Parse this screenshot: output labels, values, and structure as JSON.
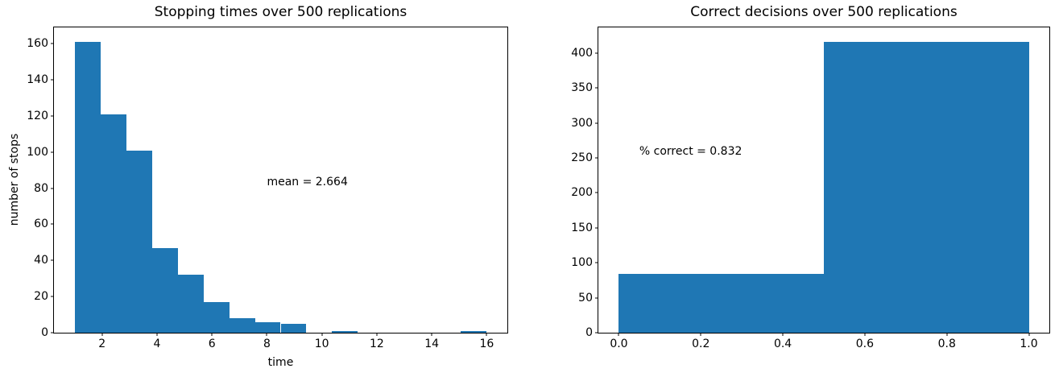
{
  "figure": {
    "background": "#ffffff",
    "text_color": "#000000",
    "axis_color": "#000000"
  },
  "chart_data": [
    {
      "type": "bar",
      "title": "Stopping times over 500 replications",
      "xlabel": "time",
      "ylabel": "number of stops",
      "bar_color": "#1f77b4",
      "bin_edges": [
        1,
        1.9375,
        2.875,
        3.8125,
        4.75,
        5.6875,
        6.625,
        7.5625,
        8.5,
        9.4375,
        10.375,
        11.3125,
        12.25,
        13.1875,
        14.125,
        15.0625,
        16
      ],
      "counts": [
        161,
        121,
        101,
        47,
        32,
        17,
        8,
        6,
        5,
        0,
        1,
        0,
        0,
        0,
        0,
        1
      ],
      "xlim": [
        0.25,
        16.75
      ],
      "ylim": [
        0,
        169.05
      ],
      "xticks": [
        2,
        4,
        6,
        8,
        10,
        12,
        14,
        16
      ],
      "xtick_labels": [
        "2",
        "4",
        "6",
        "8",
        "10",
        "12",
        "14",
        "16"
      ],
      "yticks": [
        0,
        20,
        40,
        60,
        80,
        100,
        120,
        140,
        160
      ],
      "ytick_labels": [
        "0",
        "20",
        "40",
        "60",
        "80",
        "100",
        "120",
        "140",
        "160"
      ],
      "grid": false,
      "legend": null,
      "annotation": {
        "text": "mean = 2.664",
        "x": 8,
        "y": 80
      }
    },
    {
      "type": "bar",
      "title": "Correct decisions over 500 replications",
      "xlabel": "",
      "ylabel": "",
      "bar_color": "#1f77b4",
      "bin_edges": [
        0,
        0.5,
        1.0
      ],
      "counts": [
        84,
        416
      ],
      "xlim": [
        -0.05,
        1.05
      ],
      "ylim": [
        0,
        436.8
      ],
      "xticks": [
        0.0,
        0.2,
        0.4,
        0.6,
        0.8,
        1.0
      ],
      "xtick_labels": [
        "0.0",
        "0.2",
        "0.4",
        "0.6",
        "0.8",
        "1.0"
      ],
      "yticks": [
        0,
        50,
        100,
        150,
        200,
        250,
        300,
        350,
        400
      ],
      "ytick_labels": [
        "0",
        "50",
        "100",
        "150",
        "200",
        "250",
        "300",
        "350",
        "400"
      ],
      "grid": false,
      "legend": null,
      "annotation": {
        "text": "% correct = 0.832",
        "x": 0.05,
        "y": 250
      }
    }
  ]
}
